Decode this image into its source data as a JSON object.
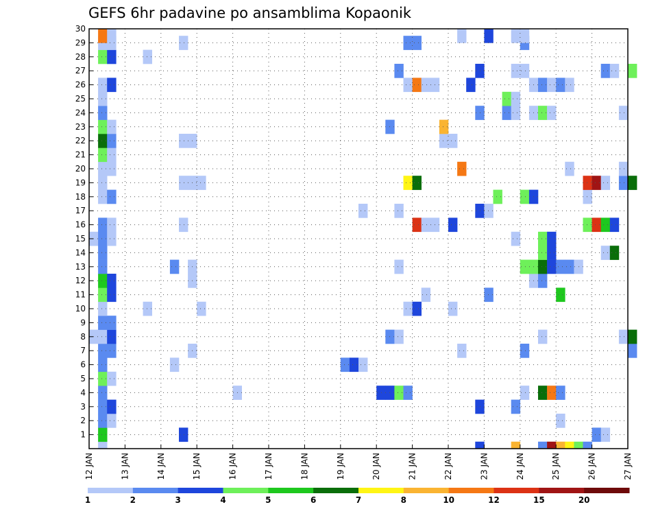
{
  "chart_data": {
    "type": "heatmap",
    "title": "GEFS 6hr padavine po ansamblima Kopaonik",
    "y_members": [
      1,
      2,
      3,
      4,
      5,
      6,
      7,
      8,
      9,
      10,
      11,
      12,
      13,
      14,
      15,
      16,
      17,
      18,
      19,
      20,
      21,
      22,
      23,
      24,
      25,
      26,
      27,
      28,
      29,
      30
    ],
    "ylim": [
      0,
      30
    ],
    "x_tick_labels": [
      "12 JAN",
      "13 JAN",
      "14 JAN",
      "15 JAN",
      "16 JAN",
      "17 JAN",
      "18 JAN",
      "19 JAN",
      "20 JAN",
      "21 JAN",
      "22 JAN",
      "23 JAN",
      "24 JAN",
      "25 JAN",
      "26 JAN",
      "27 JAN"
    ],
    "time_step_hours": 6,
    "grid": true,
    "color_scale": {
      "bounds": [
        1,
        2,
        3,
        4,
        5,
        6,
        7,
        8,
        10,
        12,
        15,
        20
      ],
      "colors": [
        "#b4c8f8",
        "#5a8af0",
        "#1e46dc",
        "#6ef05a",
        "#1ec81e",
        "#0a6e0a",
        "#fff514",
        "#fab432",
        "#f57814",
        "#dc3214",
        "#a01414",
        "#6e0a0a"
      ]
    },
    "cells": [
      {
        "m": 0,
        "t": 1,
        "c": 1
      },
      {
        "m": 0,
        "t": 43,
        "c": 3
      },
      {
        "m": 0,
        "t": 47,
        "c": 8
      },
      {
        "m": 0,
        "t": 50,
        "c": 2
      },
      {
        "m": 0,
        "t": 51,
        "c": 11
      },
      {
        "m": 0,
        "t": 52,
        "c": 8
      },
      {
        "m": 0,
        "t": 53,
        "c": 7
      },
      {
        "m": 0,
        "t": 54,
        "c": 4
      },
      {
        "m": 0,
        "t": 55,
        "c": 2
      },
      {
        "m": 1,
        "t": 1,
        "c": 5
      },
      {
        "m": 1,
        "t": 10,
        "c": 3
      },
      {
        "m": 1,
        "t": 56,
        "c": 2
      },
      {
        "m": 1,
        "t": 57,
        "c": 1
      },
      {
        "m": 2,
        "t": 1,
        "c": 2
      },
      {
        "m": 2,
        "t": 2,
        "c": 1
      },
      {
        "m": 2,
        "t": 52,
        "c": 1
      },
      {
        "m": 3,
        "t": 1,
        "c": 2
      },
      {
        "m": 3,
        "t": 2,
        "c": 3
      },
      {
        "m": 3,
        "t": 43,
        "c": 3
      },
      {
        "m": 3,
        "t": 47,
        "c": 2
      },
      {
        "m": 4,
        "t": 1,
        "c": 2
      },
      {
        "m": 4,
        "t": 16,
        "c": 1
      },
      {
        "m": 4,
        "t": 32,
        "c": 3
      },
      {
        "m": 4,
        "t": 33,
        "c": 3
      },
      {
        "m": 4,
        "t": 34,
        "c": 4
      },
      {
        "m": 4,
        "t": 35,
        "c": 2
      },
      {
        "m": 4,
        "t": 48,
        "c": 1
      },
      {
        "m": 4,
        "t": 50,
        "c": 6
      },
      {
        "m": 4,
        "t": 51,
        "c": 9
      },
      {
        "m": 4,
        "t": 52,
        "c": 2
      },
      {
        "m": 5,
        "t": 1,
        "c": 4
      },
      {
        "m": 5,
        "t": 2,
        "c": 1
      },
      {
        "m": 6,
        "t": 1,
        "c": 2
      },
      {
        "m": 6,
        "t": 9,
        "c": 1
      },
      {
        "m": 6,
        "t": 28,
        "c": 2
      },
      {
        "m": 6,
        "t": 29,
        "c": 3
      },
      {
        "m": 6,
        "t": 30,
        "c": 1
      },
      {
        "m": 7,
        "t": 1,
        "c": 2
      },
      {
        "m": 7,
        "t": 2,
        "c": 2
      },
      {
        "m": 7,
        "t": 11,
        "c": 1
      },
      {
        "m": 7,
        "t": 41,
        "c": 1
      },
      {
        "m": 7,
        "t": 48,
        "c": 2
      },
      {
        "m": 7,
        "t": 60,
        "c": 2
      },
      {
        "m": 8,
        "t": 0,
        "c": 1
      },
      {
        "m": 8,
        "t": 1,
        "c": 1
      },
      {
        "m": 8,
        "t": 2,
        "c": 3
      },
      {
        "m": 8,
        "t": 33,
        "c": 2
      },
      {
        "m": 8,
        "t": 34,
        "c": 1
      },
      {
        "m": 8,
        "t": 50,
        "c": 1
      },
      {
        "m": 8,
        "t": 59,
        "c": 1
      },
      {
        "m": 8,
        "t": 60,
        "c": 6
      },
      {
        "m": 9,
        "t": 1,
        "c": 2
      },
      {
        "m": 9,
        "t": 2,
        "c": 2
      },
      {
        "m": 10,
        "t": 1,
        "c": 1
      },
      {
        "m": 10,
        "t": 6,
        "c": 1
      },
      {
        "m": 10,
        "t": 12,
        "c": 1
      },
      {
        "m": 10,
        "t": 35,
        "c": 1
      },
      {
        "m": 10,
        "t": 36,
        "c": 3
      },
      {
        "m": 10,
        "t": 40,
        "c": 1
      },
      {
        "m": 11,
        "t": 1,
        "c": 4
      },
      {
        "m": 11,
        "t": 2,
        "c": 3
      },
      {
        "m": 11,
        "t": 37,
        "c": 1
      },
      {
        "m": 11,
        "t": 44,
        "c": 2
      },
      {
        "m": 11,
        "t": 52,
        "c": 5
      },
      {
        "m": 12,
        "t": 1,
        "c": 5
      },
      {
        "m": 12,
        "t": 2,
        "c": 3
      },
      {
        "m": 12,
        "t": 11,
        "c": 1
      },
      {
        "m": 12,
        "t": 49,
        "c": 1
      },
      {
        "m": 12,
        "t": 50,
        "c": 2
      },
      {
        "m": 13,
        "t": 1,
        "c": 2
      },
      {
        "m": 13,
        "t": 9,
        "c": 2
      },
      {
        "m": 13,
        "t": 11,
        "c": 1
      },
      {
        "m": 13,
        "t": 34,
        "c": 1
      },
      {
        "m": 13,
        "t": 48,
        "c": 4
      },
      {
        "m": 13,
        "t": 49,
        "c": 4
      },
      {
        "m": 13,
        "t": 50,
        "c": 6
      },
      {
        "m": 13,
        "t": 51,
        "c": 3
      },
      {
        "m": 13,
        "t": 52,
        "c": 2
      },
      {
        "m": 13,
        "t": 53,
        "c": 2
      },
      {
        "m": 13,
        "t": 54,
        "c": 1
      },
      {
        "m": 14,
        "t": 1,
        "c": 2
      },
      {
        "m": 14,
        "t": 50,
        "c": 4
      },
      {
        "m": 14,
        "t": 51,
        "c": 3
      },
      {
        "m": 14,
        "t": 57,
        "c": 1
      },
      {
        "m": 14,
        "t": 58,
        "c": 6
      },
      {
        "m": 15,
        "t": 0,
        "c": 1
      },
      {
        "m": 15,
        "t": 1,
        "c": 2
      },
      {
        "m": 15,
        "t": 2,
        "c": 1
      },
      {
        "m": 15,
        "t": 47,
        "c": 1
      },
      {
        "m": 15,
        "t": 50,
        "c": 4
      },
      {
        "m": 15,
        "t": 51,
        "c": 3
      },
      {
        "m": 16,
        "t": 1,
        "c": 2
      },
      {
        "m": 16,
        "t": 2,
        "c": 1
      },
      {
        "m": 16,
        "t": 10,
        "c": 1
      },
      {
        "m": 16,
        "t": 36,
        "c": 10
      },
      {
        "m": 16,
        "t": 37,
        "c": 1
      },
      {
        "m": 16,
        "t": 38,
        "c": 1
      },
      {
        "m": 16,
        "t": 40,
        "c": 3
      },
      {
        "m": 16,
        "t": 55,
        "c": 4
      },
      {
        "m": 16,
        "t": 56,
        "c": 10
      },
      {
        "m": 16,
        "t": 57,
        "c": 5
      },
      {
        "m": 16,
        "t": 58,
        "c": 3
      },
      {
        "m": 17,
        "t": 30,
        "c": 1
      },
      {
        "m": 17,
        "t": 34,
        "c": 1
      },
      {
        "m": 17,
        "t": 43,
        "c": 3
      },
      {
        "m": 17,
        "t": 44,
        "c": 1
      },
      {
        "m": 18,
        "t": 1,
        "c": 1
      },
      {
        "m": 18,
        "t": 2,
        "c": 2
      },
      {
        "m": 18,
        "t": 45,
        "c": 4
      },
      {
        "m": 18,
        "t": 48,
        "c": 4
      },
      {
        "m": 18,
        "t": 49,
        "c": 3
      },
      {
        "m": 18,
        "t": 55,
        "c": 1
      },
      {
        "m": 19,
        "t": 1,
        "c": 1
      },
      {
        "m": 19,
        "t": 10,
        "c": 1
      },
      {
        "m": 19,
        "t": 11,
        "c": 1
      },
      {
        "m": 19,
        "t": 12,
        "c": 1
      },
      {
        "m": 19,
        "t": 35,
        "c": 7
      },
      {
        "m": 19,
        "t": 36,
        "c": 6
      },
      {
        "m": 19,
        "t": 55,
        "c": 10
      },
      {
        "m": 19,
        "t": 56,
        "c": 11
      },
      {
        "m": 19,
        "t": 57,
        "c": 1
      },
      {
        "m": 19,
        "t": 59,
        "c": 2
      },
      {
        "m": 19,
        "t": 60,
        "c": 6
      },
      {
        "m": 20,
        "t": 1,
        "c": 1
      },
      {
        "m": 20,
        "t": 2,
        "c": 1
      },
      {
        "m": 20,
        "t": 41,
        "c": 9
      },
      {
        "m": 20,
        "t": 53,
        "c": 1
      },
      {
        "m": 20,
        "t": 59,
        "c": 1
      },
      {
        "m": 21,
        "t": 1,
        "c": 4
      },
      {
        "m": 21,
        "t": 2,
        "c": 1
      },
      {
        "m": 22,
        "t": 1,
        "c": 6
      },
      {
        "m": 22,
        "t": 2,
        "c": 2
      },
      {
        "m": 22,
        "t": 10,
        "c": 1
      },
      {
        "m": 22,
        "t": 11,
        "c": 1
      },
      {
        "m": 22,
        "t": 39,
        "c": 1
      },
      {
        "m": 22,
        "t": 40,
        "c": 1
      },
      {
        "m": 23,
        "t": 1,
        "c": 4
      },
      {
        "m": 23,
        "t": 2,
        "c": 1
      },
      {
        "m": 23,
        "t": 33,
        "c": 2
      },
      {
        "m": 23,
        "t": 39,
        "c": 8
      },
      {
        "m": 24,
        "t": 1,
        "c": 2
      },
      {
        "m": 24,
        "t": 43,
        "c": 2
      },
      {
        "m": 24,
        "t": 46,
        "c": 2
      },
      {
        "m": 24,
        "t": 47,
        "c": 1
      },
      {
        "m": 24,
        "t": 49,
        "c": 1
      },
      {
        "m": 24,
        "t": 50,
        "c": 4
      },
      {
        "m": 24,
        "t": 51,
        "c": 1
      },
      {
        "m": 24,
        "t": 59,
        "c": 1
      },
      {
        "m": 25,
        "t": 1,
        "c": 1
      },
      {
        "m": 25,
        "t": 46,
        "c": 4
      },
      {
        "m": 25,
        "t": 47,
        "c": 1
      },
      {
        "m": 26,
        "t": 1,
        "c": 1
      },
      {
        "m": 26,
        "t": 2,
        "c": 3
      },
      {
        "m": 26,
        "t": 35,
        "c": 1
      },
      {
        "m": 26,
        "t": 36,
        "c": 9
      },
      {
        "m": 26,
        "t": 37,
        "c": 1
      },
      {
        "m": 26,
        "t": 38,
        "c": 1
      },
      {
        "m": 26,
        "t": 42,
        "c": 3
      },
      {
        "m": 26,
        "t": 49,
        "c": 1
      },
      {
        "m": 26,
        "t": 50,
        "c": 2
      },
      {
        "m": 26,
        "t": 51,
        "c": 1
      },
      {
        "m": 26,
        "t": 52,
        "c": 2
      },
      {
        "m": 26,
        "t": 53,
        "c": 1
      },
      {
        "m": 27,
        "t": 34,
        "c": 2
      },
      {
        "m": 27,
        "t": 43,
        "c": 3
      },
      {
        "m": 27,
        "t": 47,
        "c": 1
      },
      {
        "m": 27,
        "t": 48,
        "c": 1
      },
      {
        "m": 27,
        "t": 57,
        "c": 2
      },
      {
        "m": 27,
        "t": 58,
        "c": 1
      },
      {
        "m": 27,
        "t": 60,
        "c": 4
      },
      {
        "m": 28,
        "t": 1,
        "c": 4
      },
      {
        "m": 28,
        "t": 2,
        "c": 3
      },
      {
        "m": 28,
        "t": 6,
        "c": 1
      },
      {
        "m": 29,
        "t": 1,
        "c": 1
      },
      {
        "m": 29,
        "t": 2,
        "c": 1
      },
      {
        "m": 29,
        "t": 10,
        "c": 1
      },
      {
        "m": 29,
        "t": 35,
        "c": 2
      },
      {
        "m": 29,
        "t": 36,
        "c": 2
      },
      {
        "m": 29,
        "t": 48,
        "c": 2
      },
      {
        "m": 30,
        "t": 1,
        "c": 9
      },
      {
        "m": 30,
        "t": 2,
        "c": 1
      },
      {
        "m": 30,
        "t": 41,
        "c": 1
      },
      {
        "m": 30,
        "t": 44,
        "c": 3
      },
      {
        "m": 30,
        "t": 47,
        "c": 1
      },
      {
        "m": 30,
        "t": 48,
        "c": 1
      }
    ]
  }
}
